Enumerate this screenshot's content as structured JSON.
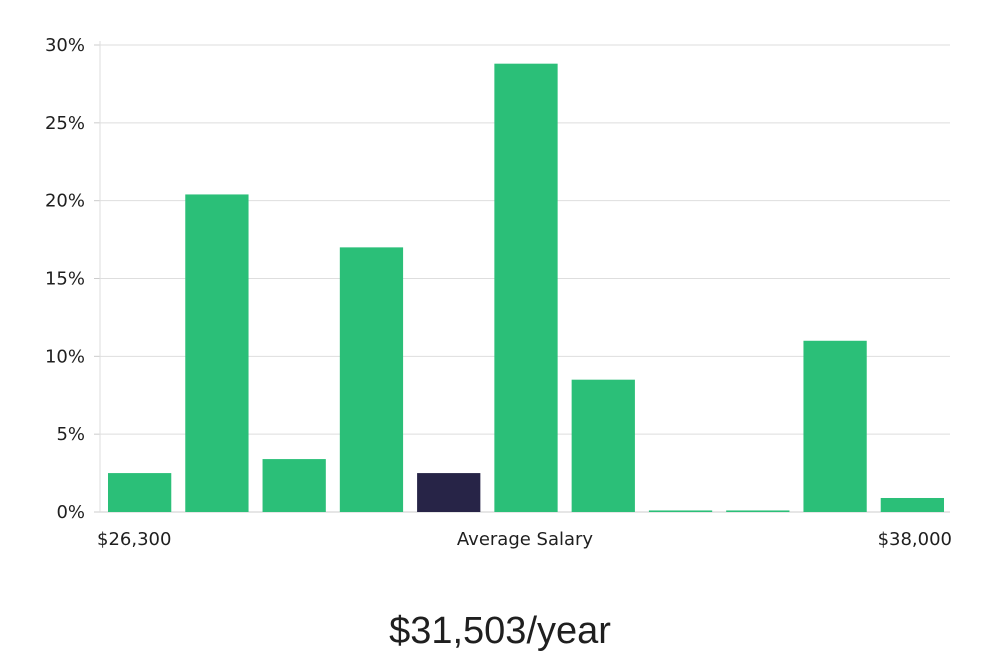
{
  "chart_data": {
    "type": "bar",
    "x_min_label": "$26,300",
    "x_center_label": "Average Salary",
    "x_max_label": "$38,000",
    "y_ticks": [
      "0%",
      "5%",
      "10%",
      "15%",
      "20%",
      "25%",
      "30%"
    ],
    "ylim": [
      0,
      30
    ],
    "grid": true,
    "values": [
      2.5,
      20.4,
      3.4,
      17.0,
      2.5,
      28.8,
      8.5,
      0.1,
      0.1,
      11.0,
      0.9
    ],
    "highlight_index": 4,
    "colors": {
      "bar": "#2bbf78",
      "highlight": "#272447",
      "grid": "#dedede",
      "axis": "#cccccc"
    }
  },
  "summary": {
    "salary": "$31,503/year"
  }
}
